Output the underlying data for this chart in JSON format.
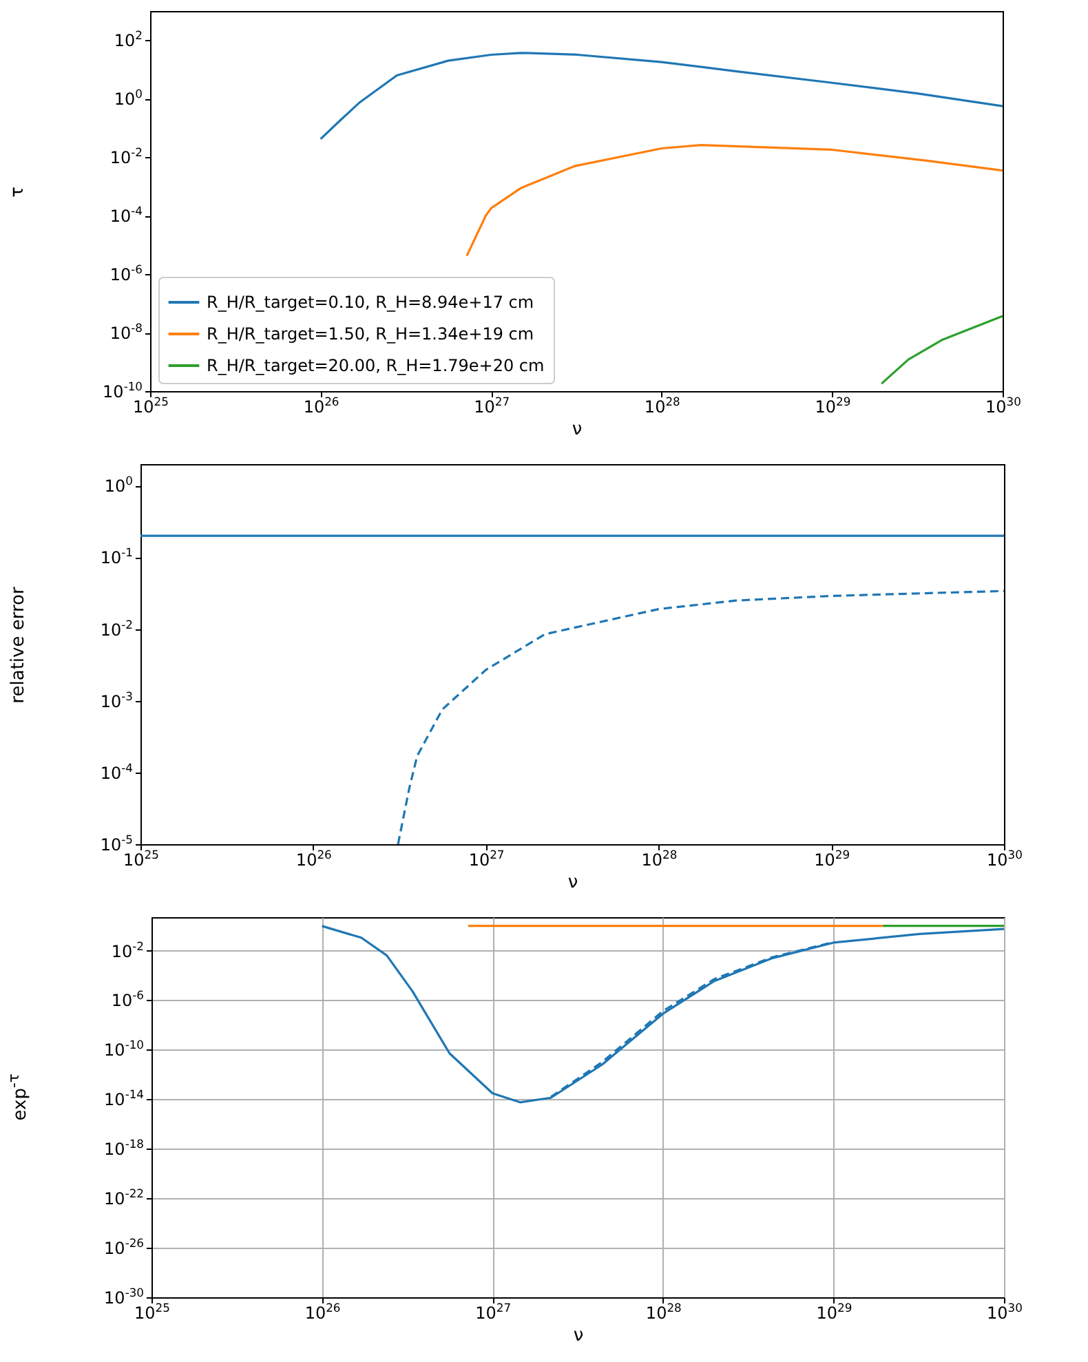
{
  "chart_data": [
    {
      "type": "line",
      "xlabel": "ν",
      "ylabel": "τ",
      "log": "xy",
      "legend": "bottom left",
      "xlim": [
        1e+25,
        1e+30
      ],
      "ylim": [
        1e-10,
        1000
      ],
      "xticks": [
        {
          "value": 1e+25,
          "label": "10$^{25}$"
        },
        {
          "value": 1e+26,
          "label": "10$^{26}$"
        },
        {
          "value": 1e+27,
          "label": "10$^{27}$"
        },
        {
          "value": 1e+28,
          "label": "10$^{28}$"
        },
        {
          "value": 1e+29,
          "label": "10$^{29}$"
        },
        {
          "value": 1e+30,
          "label": "10$^{30}$"
        }
      ],
      "yticks": [
        {
          "value": 1e-10,
          "label": "10$^{-10}$"
        },
        {
          "value": 1e-08,
          "label": "10$^{-8}$"
        },
        {
          "value": 1e-06,
          "label": "10$^{-6}$"
        },
        {
          "value": 0.0001,
          "label": "10$^{-4}$"
        },
        {
          "value": 0.01,
          "label": "10$^{-2}$"
        },
        {
          "value": 1,
          "label": "10$^{0}$"
        },
        {
          "value": 100,
          "label": "10$^{2}$"
        }
      ],
      "series": [
        {
          "name": "R_H/R_target=0.10, R_H=8.94e+17 cm",
          "color": "#1f77b4",
          "x": [
            1e+26,
            1.3e+26,
            1.7e+26,
            2.8e+26,
            5.6e+26,
            1e+27,
            1.5e+27,
            3.2e+27,
            1e+28,
            2.8e+28,
            1e+29,
            3.2e+29,
            1e+30
          ],
          "values": [
            0.042,
            0.18,
            0.76,
            6.3,
            20,
            32,
            37,
            32,
            18,
            8.5,
            3.5,
            1.5,
            0.56
          ]
        },
        {
          "name": "R_H/R_target=1.50, R_H=1.34e+19 cm",
          "color": "#ff7f0e",
          "x": [
            7.2e+26,
            9.3e+26,
            1e+27,
            1.5e+27,
            3.1e+27,
            1e+28,
            1.7e+28,
            1e+29,
            3.6e+29,
            1e+30
          ],
          "values": [
            4.2e-06,
            0.0001,
            0.00018,
            0.00089,
            0.005,
            0.02,
            0.026,
            0.018,
            0.0076,
            0.0035
          ]
        },
        {
          "name": "R_H/R_target=20.00, R_H=1.79e+20 cm",
          "color": "#2ca02c",
          "x": [
            1.95e+29,
            2.8e+29,
            4.4e+29,
            1e+30
          ],
          "values": [
            1.8e-10,
            1.2e-09,
            5.6e-09,
            3.7e-08
          ]
        }
      ]
    },
    {
      "type": "line",
      "xlabel": "ν",
      "ylabel": "relative error",
      "log": "xy",
      "xlim": [
        1e+25,
        1e+30
      ],
      "ylim": [
        1e-05,
        2
      ],
      "xticks": [
        {
          "value": 1e+25,
          "label": "10$^{25}$"
        },
        {
          "value": 1e+26,
          "label": "10$^{26}$"
        },
        {
          "value": 1e+27,
          "label": "10$^{27}$"
        },
        {
          "value": 1e+28,
          "label": "10$^{28}$"
        },
        {
          "value": 1e+29,
          "label": "10$^{29}$"
        },
        {
          "value": 1e+30,
          "label": "10$^{30}$"
        }
      ],
      "yticks": [
        {
          "value": 1e-05,
          "label": "10$^{-5}$"
        },
        {
          "value": 0.0001,
          "label": "10$^{-4}$"
        },
        {
          "value": 0.001,
          "label": "10$^{-3}$"
        },
        {
          "value": 0.01,
          "label": "10$^{-2}$"
        },
        {
          "value": 0.1,
          "label": "10$^{-1}$"
        },
        {
          "value": 1,
          "label": "10$^{0}$"
        }
      ],
      "series": [
        {
          "color": "#1f77b4",
          "line_style": "solid",
          "x": [
            1e+25,
            1e+30
          ],
          "values": [
            0.2,
            0.2
          ]
        },
        {
          "color": "#1f77b4",
          "line_style": "dashed",
          "x": [
            3.1e+26,
            3.6e+26,
            4e+26,
            5.6e+26,
            1e+27,
            2.2e+27,
            1e+28,
            2.8e+28,
            1e+29,
            1e+30
          ],
          "values": [
            1e-05,
            6e-05,
            0.00017,
            0.00076,
            0.0027,
            0.0085,
            0.019,
            0.025,
            0.029,
            0.034
          ]
        }
      ]
    },
    {
      "type": "line",
      "xlabel": "ν",
      "ylabel": "exp$^{-τ}$",
      "log": "xy",
      "grid": true,
      "xlim": [
        1e+25,
        1e+30
      ],
      "ylim": [
        1e-30,
        5
      ],
      "xticks": [
        {
          "value": 1e+25,
          "label": "10$^{25}$"
        },
        {
          "value": 1e+26,
          "label": "10$^{26}$"
        },
        {
          "value": 1e+27,
          "label": "10$^{27}$"
        },
        {
          "value": 1e+28,
          "label": "10$^{28}$"
        },
        {
          "value": 1e+29,
          "label": "10$^{29}$"
        },
        {
          "value": 1e+30,
          "label": "10$^{30}$"
        }
      ],
      "yticks": [
        {
          "value": 1e-30,
          "label": "10$^{-30}$"
        },
        {
          "value": 1e-26,
          "label": "10$^{-26}$"
        },
        {
          "value": 1e-22,
          "label": "10$^{-22}$"
        },
        {
          "value": 1e-18,
          "label": "10$^{-18}$"
        },
        {
          "value": 1e-14,
          "label": "10$^{-14}$"
        },
        {
          "value": 1e-10,
          "label": "10$^{-10}$"
        },
        {
          "value": 1e-06,
          "label": "10$^{-6}$"
        },
        {
          "value": 0.01,
          "label": "10$^{-2}$"
        }
      ],
      "series": [
        {
          "color": "#1f77b4",
          "line_style": "dashed",
          "x": [
            2.2e+27,
            4.4e+27,
            1e+28,
            2e+28,
            4.4e+28,
            1e+29
          ],
          "values": [
            1.5e-14,
            1e-11,
            1.3e-07,
            5e-05,
            0.003,
            0.048
          ]
        },
        {
          "color": "#1f77b4",
          "line_style": "solid",
          "x": [
            1e+26,
            1.7e+26,
            2.4e+26,
            3.4e+26,
            5.6e+26,
            1e+27,
            1.45e+27,
            2.2e+27,
            4.4e+27,
            1e+28,
            2e+28,
            4.4e+28,
            1e+29,
            3.2e+29,
            1e+30
          ],
          "values": [
            0.96,
            0.11,
            0.004,
            5e-06,
            5e-11,
            3e-14,
            5.6e-15,
            1.3e-14,
            6.3e-12,
            8e-08,
            3.5e-05,
            0.0025,
            0.044,
            0.22,
            0.56
          ]
        },
        {
          "color": "#ff7f0e",
          "x": [
            7.2e+26,
            1.95e+29
          ],
          "values": [
            1,
            1
          ]
        },
        {
          "color": "#2ca02c",
          "x": [
            1.95e+29,
            1e+30
          ],
          "values": [
            1,
            1
          ]
        }
      ]
    }
  ]
}
